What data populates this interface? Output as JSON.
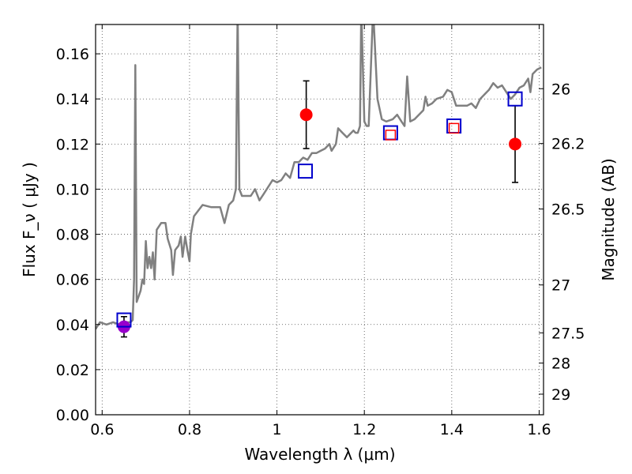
{
  "chart_data": {
    "type": "scatter",
    "title": "",
    "xlabel": "Wavelength  λ (μm)",
    "ylabel": "Flux  F_ν  ( μJy )",
    "y2label": "Magnitude (AB)",
    "xlim": [
      0.585,
      1.61
    ],
    "ylim": [
      0.0,
      0.173
    ],
    "grid": true,
    "x_ticks": [
      0.6,
      0.8,
      1.0,
      1.2,
      1.4,
      1.6
    ],
    "x_tick_labels": [
      "0.6",
      "0.8",
      "1",
      "1.2",
      "1.4",
      "1.6"
    ],
    "y_ticks": [
      0.0,
      0.02,
      0.04,
      0.06,
      0.08,
      0.1,
      0.12,
      0.14,
      0.16
    ],
    "y_tick_labels": [
      "0.00",
      "0.02",
      "0.04",
      "0.06",
      "0.08",
      "0.10",
      "0.12",
      "0.14",
      "0.16"
    ],
    "mag_ticks": [
      26,
      26.2,
      26.5,
      27,
      27.5,
      28,
      29
    ],
    "mag_tick_labels": [
      "26",
      "26.2",
      "26.5",
      "27",
      "27.5",
      "28",
      "29"
    ],
    "spectrum": {
      "color": "#808080",
      "points": [
        [
          0.585,
          0.038
        ],
        [
          0.595,
          0.041
        ],
        [
          0.61,
          0.04
        ],
        [
          0.625,
          0.041
        ],
        [
          0.64,
          0.04
        ],
        [
          0.655,
          0.041
        ],
        [
          0.665,
          0.041
        ],
        [
          0.67,
          0.042
        ],
        [
          0.673,
          0.06
        ],
        [
          0.676,
          0.155
        ],
        [
          0.679,
          0.05
        ],
        [
          0.688,
          0.055
        ],
        [
          0.692,
          0.06
        ],
        [
          0.696,
          0.058
        ],
        [
          0.7,
          0.077
        ],
        [
          0.704,
          0.065
        ],
        [
          0.708,
          0.07
        ],
        [
          0.712,
          0.065
        ],
        [
          0.716,
          0.072
        ],
        [
          0.72,
          0.06
        ],
        [
          0.725,
          0.082
        ],
        [
          0.735,
          0.085
        ],
        [
          0.745,
          0.085
        ],
        [
          0.75,
          0.078
        ],
        [
          0.758,
          0.073
        ],
        [
          0.762,
          0.062
        ],
        [
          0.767,
          0.073
        ],
        [
          0.775,
          0.075
        ],
        [
          0.78,
          0.079
        ],
        [
          0.784,
          0.07
        ],
        [
          0.79,
          0.079
        ],
        [
          0.795,
          0.073
        ],
        [
          0.8,
          0.068
        ],
        [
          0.803,
          0.08
        ],
        [
          0.81,
          0.088
        ],
        [
          0.83,
          0.093
        ],
        [
          0.85,
          0.092
        ],
        [
          0.87,
          0.092
        ],
        [
          0.88,
          0.085
        ],
        [
          0.89,
          0.093
        ],
        [
          0.9,
          0.095
        ],
        [
          0.906,
          0.1
        ],
        [
          0.91,
          0.18
        ],
        [
          0.914,
          0.1
        ],
        [
          0.92,
          0.097
        ],
        [
          0.94,
          0.097
        ],
        [
          0.95,
          0.1
        ],
        [
          0.96,
          0.095
        ],
        [
          0.97,
          0.098
        ],
        [
          0.99,
          0.104
        ],
        [
          1.0,
          0.103
        ],
        [
          1.01,
          0.104
        ],
        [
          1.02,
          0.107
        ],
        [
          1.03,
          0.105
        ],
        [
          1.04,
          0.112
        ],
        [
          1.05,
          0.112
        ],
        [
          1.06,
          0.114
        ],
        [
          1.07,
          0.113
        ],
        [
          1.08,
          0.116
        ],
        [
          1.09,
          0.116
        ],
        [
          1.1,
          0.117
        ],
        [
          1.11,
          0.118
        ],
        [
          1.12,
          0.12
        ],
        [
          1.125,
          0.117
        ],
        [
          1.135,
          0.12
        ],
        [
          1.14,
          0.127
        ],
        [
          1.15,
          0.125
        ],
        [
          1.16,
          0.123
        ],
        [
          1.175,
          0.126
        ],
        [
          1.18,
          0.125
        ],
        [
          1.185,
          0.125
        ],
        [
          1.19,
          0.128
        ],
        [
          1.193,
          0.18
        ],
        [
          1.2,
          0.13
        ],
        [
          1.205,
          0.128
        ],
        [
          1.21,
          0.128
        ],
        [
          1.22,
          0.18
        ],
        [
          1.23,
          0.14
        ],
        [
          1.24,
          0.131
        ],
        [
          1.25,
          0.13
        ],
        [
          1.265,
          0.131
        ],
        [
          1.275,
          0.133
        ],
        [
          1.285,
          0.13
        ],
        [
          1.292,
          0.128
        ],
        [
          1.298,
          0.15
        ],
        [
          1.305,
          0.13
        ],
        [
          1.315,
          0.131
        ],
        [
          1.325,
          0.133
        ],
        [
          1.335,
          0.135
        ],
        [
          1.34,
          0.141
        ],
        [
          1.345,
          0.137
        ],
        [
          1.355,
          0.138
        ],
        [
          1.365,
          0.14
        ],
        [
          1.38,
          0.141
        ],
        [
          1.39,
          0.144
        ],
        [
          1.4,
          0.143
        ],
        [
          1.41,
          0.137
        ],
        [
          1.42,
          0.137
        ],
        [
          1.435,
          0.137
        ],
        [
          1.445,
          0.138
        ],
        [
          1.455,
          0.136
        ],
        [
          1.465,
          0.14
        ],
        [
          1.475,
          0.142
        ],
        [
          1.485,
          0.144
        ],
        [
          1.495,
          0.147
        ],
        [
          1.505,
          0.145
        ],
        [
          1.515,
          0.146
        ],
        [
          1.525,
          0.143
        ],
        [
          1.535,
          0.14
        ],
        [
          1.545,
          0.142
        ],
        [
          1.555,
          0.145
        ],
        [
          1.565,
          0.146
        ],
        [
          1.575,
          0.149
        ],
        [
          1.58,
          0.143
        ],
        [
          1.585,
          0.151
        ],
        [
          1.595,
          0.153
        ],
        [
          1.605,
          0.154
        ]
      ]
    },
    "model_points": {
      "color": "#0000cc",
      "marker": "open-square",
      "points": [
        [
          0.65,
          0.042
        ],
        [
          1.065,
          0.108
        ],
        [
          1.26,
          0.125
        ],
        [
          1.405,
          0.128
        ],
        [
          1.545,
          0.14
        ]
      ]
    },
    "model_points_small": {
      "color": "#ff0000",
      "marker": "open-square",
      "points": [
        [
          1.26,
          0.124
        ],
        [
          1.405,
          0.127
        ]
      ]
    },
    "observed_points": {
      "color": "#ff0000",
      "marker": "filled-circle",
      "points": [
        {
          "x": 1.067,
          "y": 0.133,
          "err": 0.015
        },
        {
          "x": 1.545,
          "y": 0.12,
          "err": 0.017
        }
      ]
    },
    "blended_point": {
      "color": "#9900cc",
      "marker": "filled-circle",
      "x": 0.65,
      "y": 0.039,
      "err": 0.0045
    }
  }
}
